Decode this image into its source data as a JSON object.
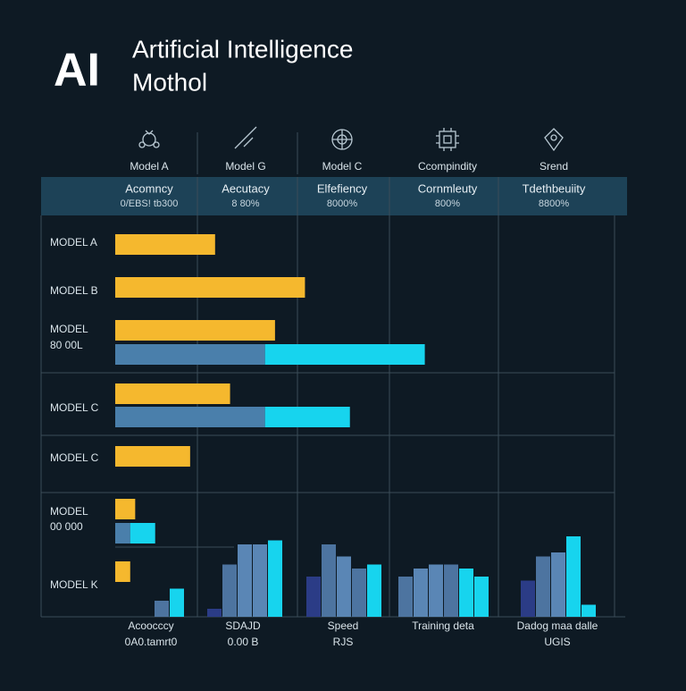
{
  "header": {
    "logo": "AI",
    "title_lines": [
      "Artificial Intelligence",
      "Mothol"
    ]
  },
  "columns": [
    {
      "label": "Model A",
      "metric": "Acomncy",
      "value": "0/EBS! tb300"
    },
    {
      "label": "Model G",
      "metric": "Aecutacy",
      "value": "8 80%"
    },
    {
      "label": "Model C",
      "metric": "Elfefiency",
      "value": "8000%"
    },
    {
      "label": "Ccompindity",
      "metric": "Cornmleuty",
      "value": "800%"
    },
    {
      "label": "Srend",
      "metric": "Tdethbeuiity",
      "value": "8800%"
    }
  ],
  "chart_data": [
    {
      "type": "hbar",
      "xlim": [
        0,
        100
      ],
      "rows": [
        {
          "labels": [
            "MODEL A"
          ],
          "bars": [
            [
              {
                "value": 20,
                "color": "#f5b82e"
              }
            ]
          ]
        },
        {
          "labels": [
            "MODEL B"
          ],
          "bars": [
            [
              {
                "value": 38,
                "color": "#f5b82e"
              }
            ]
          ]
        },
        {
          "labels": [
            "MODEL",
            "80 00L"
          ],
          "bars": [
            [
              {
                "value": 32,
                "color": "#f5b82e"
              }
            ],
            [
              {
                "value": 30,
                "color": "#4a7fab"
              },
              {
                "value": 32,
                "color": "#17d4ee"
              }
            ]
          ]
        },
        {
          "labels": [
            "MODEL C"
          ],
          "bars": [
            [
              {
                "value": 23,
                "color": "#f5b82e"
              }
            ],
            [
              {
                "value": 30,
                "color": "#4a7fab"
              },
              {
                "value": 17,
                "color": "#17d4ee"
              }
            ]
          ]
        },
        {
          "labels": [
            "MODEL C"
          ],
          "bars": [
            [
              {
                "value": 15,
                "color": "#f5b82e"
              }
            ]
          ]
        },
        {
          "labels": [
            "MODEL",
            "00 000"
          ],
          "bars": [
            [
              {
                "value": 4,
                "color": "#f5b82e"
              }
            ],
            [
              {
                "value": 3,
                "color": "#4a7fab"
              },
              {
                "value": 5,
                "color": "#17d4ee"
              }
            ]
          ]
        },
        {
          "labels": [
            "MODEL K"
          ],
          "bars": [
            [
              {
                "value": 3,
                "color": "#f5b82e"
              }
            ]
          ]
        }
      ]
    },
    {
      "type": "vbar",
      "ylim": [
        0,
        100
      ],
      "groups": [
        {
          "labels": [
            "Acoocccy",
            "0A0.tamrt0"
          ],
          "values": [
            4,
            7
          ],
          "colors": [
            "#4d74a0",
            "#17d4ee"
          ]
        },
        {
          "labels": [
            "SDAJD",
            "0.00 B"
          ],
          "values": [
            2,
            13,
            18,
            18,
            19
          ],
          "colors": [
            "#2b3c86",
            "#4d74a0",
            "#5a86b5",
            "#5a86b5",
            "#17d4ee"
          ]
        },
        {
          "labels": [
            "Speed",
            "RJS"
          ],
          "values": [
            10,
            18,
            15,
            12,
            13
          ],
          "colors": [
            "#2b3c86",
            "#4d74a0",
            "#5a86b5",
            "#4d74a0",
            "#17d4ee"
          ]
        },
        {
          "labels": [
            "Training deta"
          ],
          "values": [
            10,
            12,
            13,
            13,
            12,
            10
          ],
          "colors": [
            "#4d74a0",
            "#5a86b5",
            "#5a86b5",
            "#4d74a0",
            "#17d4ee",
            "#17d4ee"
          ]
        },
        {
          "labels": [
            "Dadog maa dalle",
            "UGIS"
          ],
          "values": [
            9,
            15,
            16,
            20,
            3
          ],
          "colors": [
            "#2b3c86",
            "#4d74a0",
            "#5a86b5",
            "#17d4ee",
            "#17d4ee"
          ]
        }
      ]
    }
  ]
}
